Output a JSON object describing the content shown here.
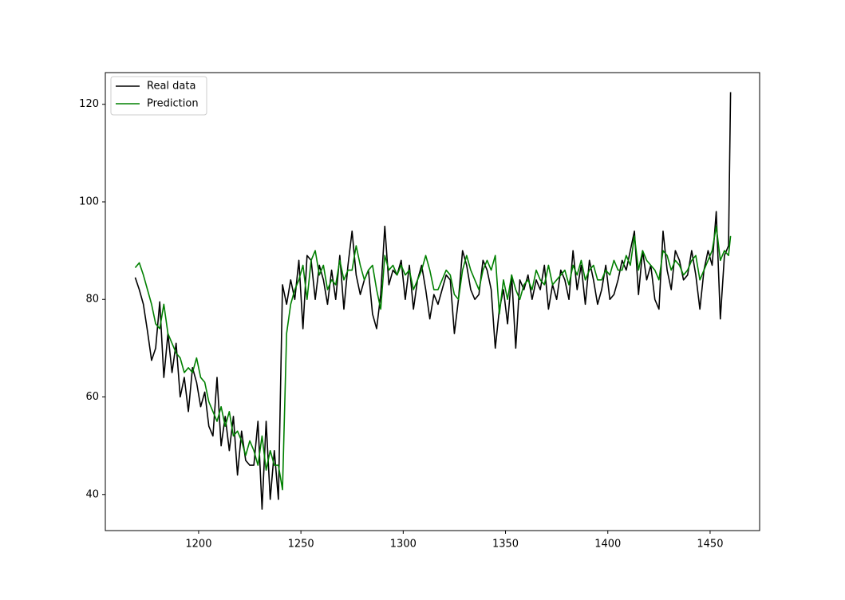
{
  "chart_data": {
    "type": "line",
    "x": [
      1169,
      1171,
      1173,
      1175,
      1177,
      1179,
      1181,
      1183,
      1185,
      1187,
      1189,
      1191,
      1193,
      1195,
      1197,
      1199,
      1201,
      1203,
      1205,
      1207,
      1209,
      1211,
      1213,
      1215,
      1217,
      1219,
      1221,
      1223,
      1225,
      1227,
      1229,
      1231,
      1233,
      1235,
      1237,
      1239,
      1241,
      1243,
      1245,
      1247,
      1249,
      1251,
      1253,
      1255,
      1257,
      1259,
      1261,
      1263,
      1265,
      1267,
      1269,
      1271,
      1273,
      1275,
      1277,
      1279,
      1281,
      1283,
      1285,
      1287,
      1289,
      1291,
      1293,
      1295,
      1297,
      1299,
      1301,
      1303,
      1305,
      1307,
      1309,
      1311,
      1313,
      1315,
      1317,
      1319,
      1321,
      1323,
      1325,
      1327,
      1329,
      1331,
      1333,
      1335,
      1337,
      1339,
      1341,
      1343,
      1345,
      1347,
      1349,
      1351,
      1353,
      1355,
      1357,
      1359,
      1361,
      1363,
      1365,
      1367,
      1369,
      1371,
      1373,
      1375,
      1377,
      1379,
      1381,
      1383,
      1385,
      1387,
      1389,
      1391,
      1393,
      1395,
      1397,
      1399,
      1401,
      1403,
      1405,
      1407,
      1409,
      1411,
      1413,
      1415,
      1417,
      1419,
      1421,
      1423,
      1425,
      1427,
      1429,
      1431,
      1433,
      1435,
      1437,
      1439,
      1441,
      1443,
      1445,
      1447,
      1449,
      1451,
      1453,
      1455,
      1457,
      1459,
      1460
    ],
    "series": [
      {
        "name": "Real data",
        "color": "#000000",
        "values": [
          84.5,
          82,
          79,
          73.5,
          67.5,
          70,
          79.5,
          64,
          73,
          65,
          71,
          60,
          64,
          57,
          66,
          63,
          58,
          61,
          54,
          52,
          64,
          50,
          56,
          49,
          56,
          44,
          53,
          47,
          46,
          46,
          55,
          37,
          55,
          39,
          49,
          39,
          83,
          79,
          84,
          80,
          88,
          74,
          89,
          88,
          80,
          87,
          84,
          79,
          86,
          80,
          89,
          78,
          87,
          94,
          85,
          81,
          84,
          86,
          77,
          74,
          81,
          95,
          83,
          86,
          85,
          88,
          80,
          87,
          78,
          84,
          87,
          82,
          76,
          81,
          79,
          82,
          85,
          84,
          73,
          80,
          90,
          87,
          82,
          80,
          81,
          88,
          86,
          82,
          70,
          78,
          82,
          75,
          85,
          70,
          84,
          82,
          85,
          80,
          84,
          82,
          87,
          78,
          83,
          80,
          86,
          84,
          80,
          90,
          82,
          87,
          79,
          88,
          84,
          79,
          82,
          87,
          80,
          81,
          84,
          88,
          86,
          90,
          94,
          81,
          90,
          84,
          87,
          80,
          78,
          94,
          86,
          82,
          90,
          88,
          84,
          85,
          90,
          85,
          78,
          86,
          90,
          87,
          98,
          76,
          89,
          91,
          122.5
        ]
      },
      {
        "name": "Prediction",
        "color": "#008000",
        "values": [
          86.5,
          87.5,
          85,
          82,
          79,
          75,
          74,
          79,
          73,
          71,
          69,
          68,
          65,
          66,
          65,
          68,
          64,
          63,
          59,
          57,
          55,
          58,
          54,
          57,
          52,
          53,
          51,
          48,
          51,
          49,
          46,
          52,
          45,
          49,
          46,
          46,
          41,
          73,
          79,
          82,
          84,
          87,
          80,
          88,
          90,
          85,
          87,
          82,
          84,
          83,
          88,
          84,
          86,
          86,
          91,
          87,
          84,
          86,
          87,
          82,
          78,
          89,
          86,
          87,
          85,
          87,
          85,
          86,
          82,
          84,
          86,
          89,
          86,
          82,
          82,
          84,
          86,
          85,
          81,
          80,
          86,
          89,
          86,
          84,
          82,
          86,
          88,
          86,
          89,
          77,
          84,
          80,
          85,
          82,
          80,
          83,
          84,
          82,
          86,
          84,
          83,
          87,
          83,
          84,
          85,
          86,
          83,
          87,
          85,
          88,
          84,
          86,
          87,
          84,
          84,
          86,
          85,
          88,
          86,
          86,
          89,
          87,
          93,
          86,
          90,
          88,
          87,
          86,
          84,
          90,
          89,
          86,
          88,
          87,
          85,
          86,
          88,
          89,
          84,
          86,
          88,
          90,
          95,
          88,
          90,
          89,
          93
        ]
      }
    ],
    "xlim": [
      1154.4,
      1474.2
    ],
    "xticks": [
      1200,
      1250,
      1300,
      1350,
      1400,
      1450
    ],
    "ylim": [
      32.6,
      126.5
    ],
    "yticks": [
      40,
      60,
      80,
      100,
      120
    ],
    "legend": "upper left"
  }
}
